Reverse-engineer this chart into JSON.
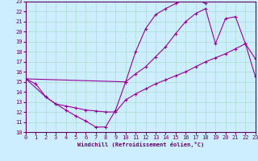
{
  "xlabel": "Windchill (Refroidissement éolien,°C)",
  "bg_color": "#cceeff",
  "grid_color": "#aaddcc",
  "line_color": "#990099",
  "xlim": [
    0,
    23
  ],
  "ylim": [
    10,
    23
  ],
  "xticks": [
    0,
    1,
    2,
    3,
    4,
    5,
    6,
    7,
    8,
    9,
    10,
    11,
    12,
    13,
    14,
    15,
    16,
    17,
    18,
    19,
    20,
    21,
    22,
    23
  ],
  "yticks": [
    10,
    11,
    12,
    13,
    14,
    15,
    16,
    17,
    18,
    19,
    20,
    21,
    22,
    23
  ],
  "line1_x": [
    0,
    1,
    2,
    3,
    4,
    5,
    6,
    7,
    8,
    9,
    10,
    11,
    12,
    13,
    14,
    15,
    16,
    17,
    18
  ],
  "line1_y": [
    15.3,
    14.8,
    13.5,
    12.8,
    12.2,
    11.6,
    11.1,
    10.5,
    10.5,
    12.2,
    15.0,
    18.0,
    20.3,
    21.7,
    22.3,
    22.8,
    23.2,
    23.3,
    22.8
  ],
  "line2_x": [
    0,
    2,
    3,
    4,
    5,
    6,
    7,
    8,
    9,
    10,
    11,
    12,
    13,
    14,
    15,
    16,
    17,
    18,
    19,
    20,
    21,
    22,
    23
  ],
  "line2_y": [
    15.3,
    13.5,
    12.8,
    12.6,
    12.4,
    12.2,
    12.1,
    12.0,
    12.0,
    13.2,
    13.8,
    14.3,
    14.8,
    15.2,
    15.6,
    16.0,
    16.5,
    17.0,
    17.4,
    17.8,
    18.3,
    18.8,
    15.5
  ],
  "line3_x": [
    0,
    10,
    11,
    12,
    13,
    14,
    15,
    16,
    17,
    18,
    19,
    20,
    21,
    22,
    23
  ],
  "line3_y": [
    15.3,
    15.0,
    15.8,
    16.5,
    17.5,
    18.5,
    19.8,
    21.0,
    21.8,
    22.3,
    18.8,
    21.3,
    21.5,
    18.8,
    17.3
  ]
}
